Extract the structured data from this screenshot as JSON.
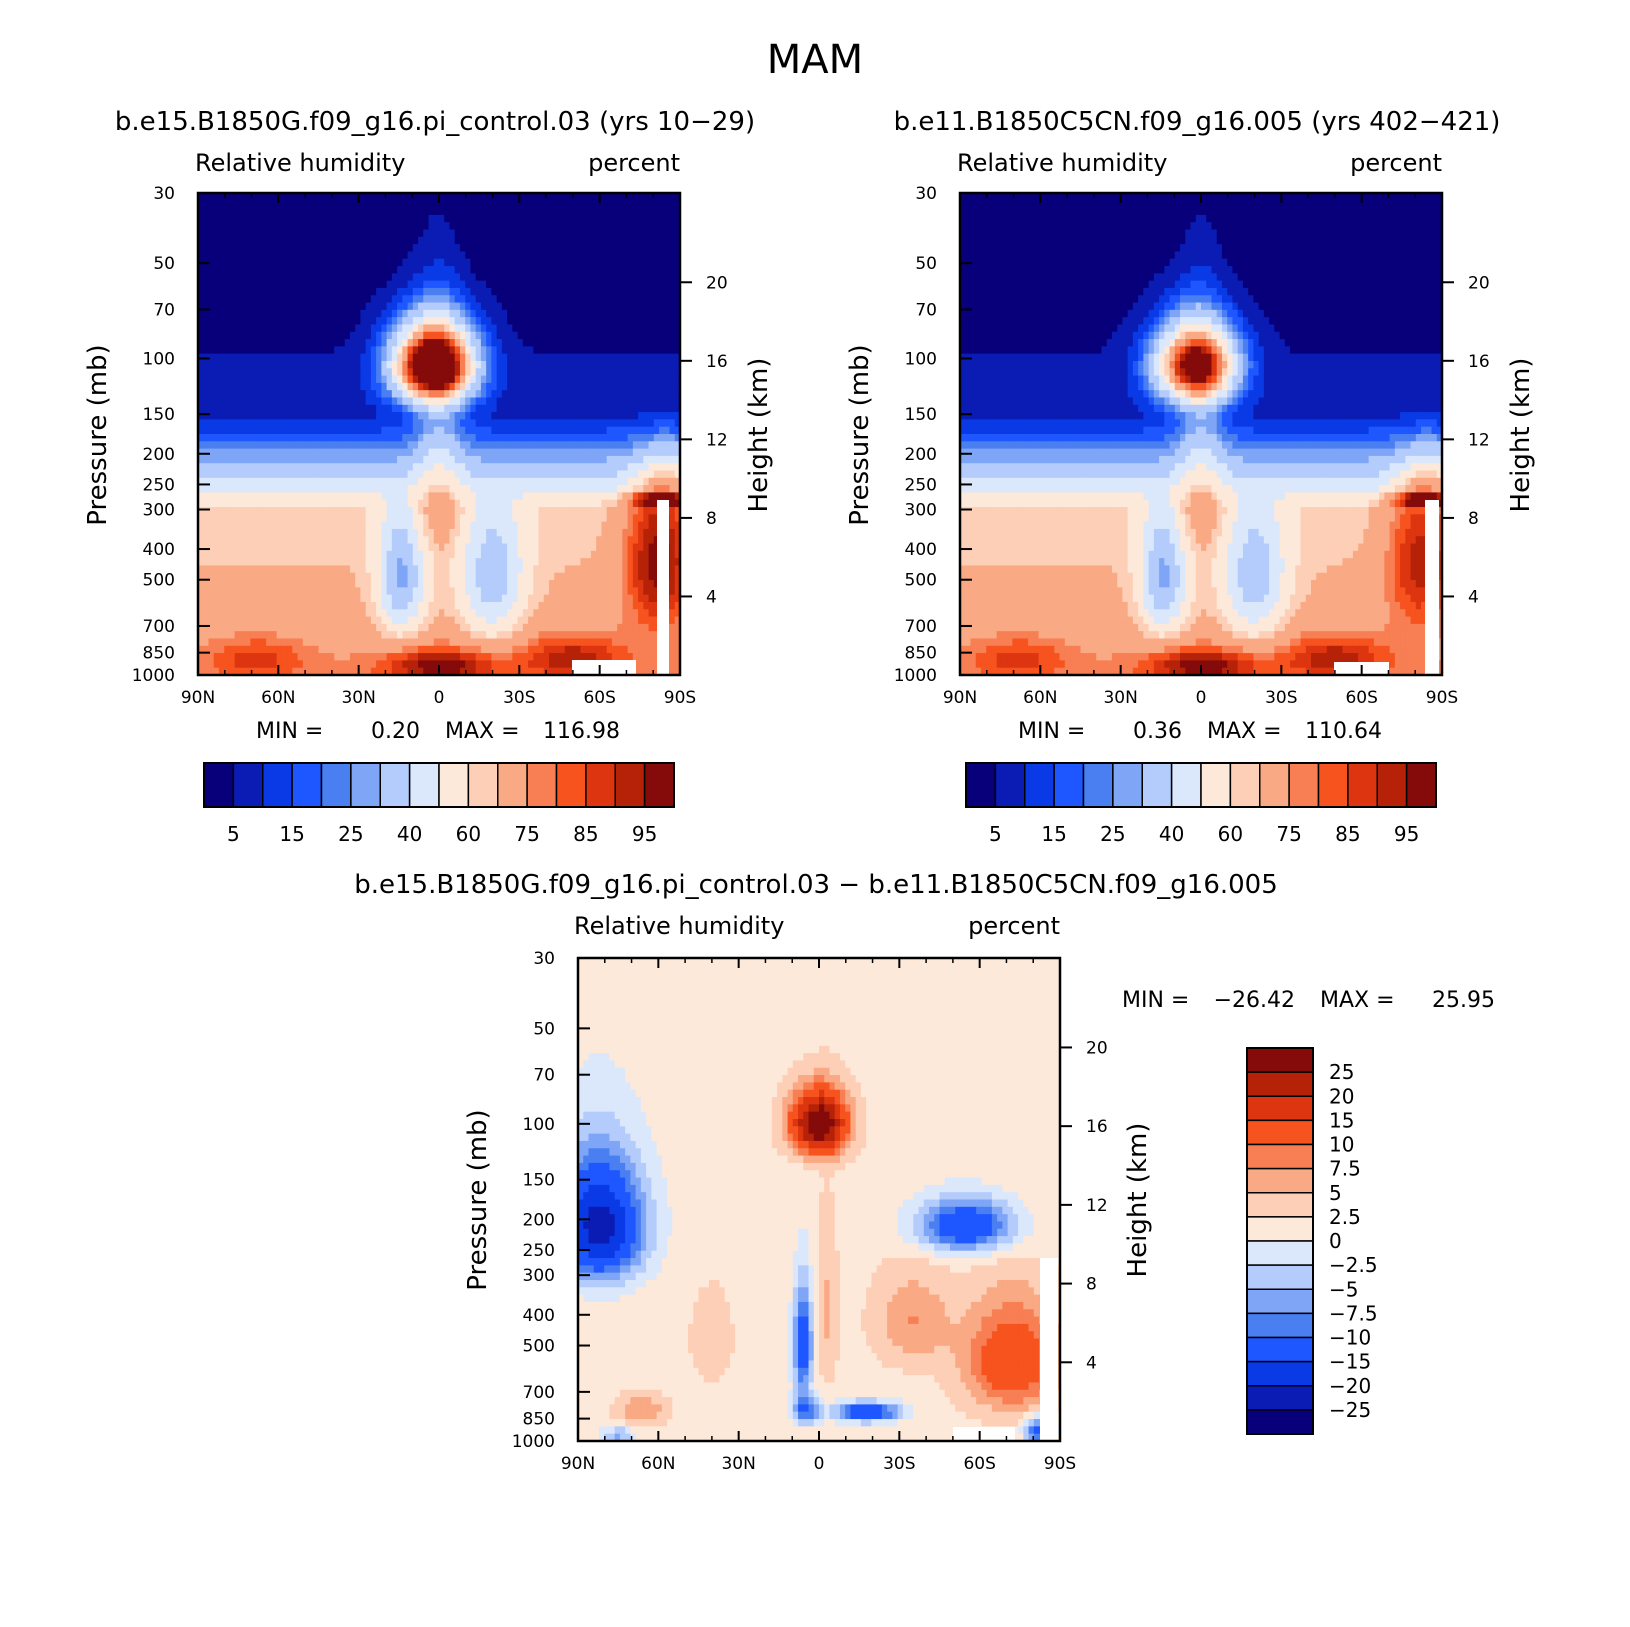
{
  "figure_title": "MAM",
  "colors": {
    "seq16": [
      "#08007a",
      "#0a1cb3",
      "#0a3ae6",
      "#1e57ff",
      "#4a7ff2",
      "#7fa5f7",
      "#b4ccfb",
      "#dbe8fc",
      "#fde9da",
      "#fdcfb6",
      "#f9a984",
      "#f77f53",
      "#f7531f",
      "#dd3510",
      "#b52208",
      "#850b0b"
    ],
    "diff14": [
      "#08007a",
      "#0a1cb3",
      "#0a3ae6",
      "#1e57ff",
      "#4a7ff2",
      "#7fa5f7",
      "#b4ccfb",
      "#dbe8fc",
      "#fde9da",
      "#fdcfb6",
      "#f9a984",
      "#f77f53",
      "#f7531f",
      "#dd3510",
      "#b52208",
      "#850b0b"
    ]
  },
  "chart_data": [
    {
      "type": "contour",
      "title": "b.e15.B1850G.f09_g16.pi_control.03 (yrs 10−29)",
      "variable": "Relative humidity",
      "units": "percent",
      "xlabel": "",
      "ylabel": "Pressure (mb)",
      "y2label": "Height (km)",
      "x_ticks": [
        "90N",
        "60N",
        "30N",
        "0",
        "30S",
        "60S",
        "90S"
      ],
      "y_ticks": [
        30,
        50,
        70,
        100,
        150,
        200,
        250,
        300,
        400,
        500,
        700,
        850,
        1000
      ],
      "y_tick_labels": [
        "30",
        "50",
        "70",
        "100",
        "150",
        "200",
        "250",
        "300",
        "400",
        "500",
        "700",
        "850",
        "1000"
      ],
      "height_ticks": [
        20,
        16,
        12,
        8,
        4
      ],
      "min_label": "MIN =",
      "min_value": "0.20",
      "max_label": "MAX =",
      "max_value": "116.98",
      "levels": [
        5,
        10,
        15,
        20,
        25,
        30,
        40,
        50,
        60,
        65,
        75,
        80,
        85,
        90,
        95
      ],
      "colorbar_labels": [
        "5",
        "15",
        "25",
        "40",
        "60",
        "75",
        "85",
        "95"
      ],
      "min": 0.2,
      "max": 116.98
    },
    {
      "type": "contour",
      "title": "b.e11.B1850C5CN.f09_g16.005 (yrs 402−421)",
      "variable": "Relative humidity",
      "units": "percent",
      "xlabel": "",
      "ylabel": "Pressure (mb)",
      "y2label": "Height (km)",
      "x_ticks": [
        "90N",
        "60N",
        "30N",
        "0",
        "30S",
        "60S",
        "90S"
      ],
      "y_ticks": [
        30,
        50,
        70,
        100,
        150,
        200,
        250,
        300,
        400,
        500,
        700,
        850,
        1000
      ],
      "y_tick_labels": [
        "30",
        "50",
        "70",
        "100",
        "150",
        "200",
        "250",
        "300",
        "400",
        "500",
        "700",
        "850",
        "1000"
      ],
      "height_ticks": [
        20,
        16,
        12,
        8,
        4
      ],
      "min_label": "MIN =",
      "min_value": "0.36",
      "max_label": "MAX =",
      "max_value": "110.64",
      "levels": [
        5,
        10,
        15,
        20,
        25,
        30,
        40,
        50,
        60,
        65,
        75,
        80,
        85,
        90,
        95
      ],
      "colorbar_labels": [
        "5",
        "15",
        "25",
        "40",
        "60",
        "75",
        "85",
        "95"
      ],
      "min": 0.36,
      "max": 110.64
    },
    {
      "type": "contour",
      "title": "b.e15.B1850G.f09_g16.pi_control.03 − b.e11.B1850C5CN.f09_g16.005",
      "variable": "Relative humidity",
      "units": "percent",
      "xlabel": "",
      "ylabel": "Pressure (mb)",
      "y2label": "Height (km)",
      "x_ticks": [
        "90N",
        "60N",
        "30N",
        "0",
        "30S",
        "60S",
        "90S"
      ],
      "y_ticks": [
        30,
        50,
        70,
        100,
        150,
        200,
        250,
        300,
        400,
        500,
        700,
        850,
        1000
      ],
      "y_tick_labels": [
        "30",
        "50",
        "70",
        "100",
        "150",
        "200",
        "250",
        "300",
        "400",
        "500",
        "700",
        "850",
        "1000"
      ],
      "height_ticks": [
        20,
        16,
        12,
        8,
        4
      ],
      "min_label": "MIN =",
      "min_value": "−26.42",
      "max_label": "MAX =",
      "max_value": "25.95",
      "levels": [
        -25,
        -20,
        -15,
        -10,
        -7.5,
        -5,
        -2.5,
        0,
        2.5,
        5,
        7.5,
        10,
        15,
        20,
        25
      ],
      "colorbar_labels": [
        "25",
        "20",
        "15",
        "10",
        "7.5",
        "5",
        "2.5",
        "0",
        "−2.5",
        "−5",
        "−7.5",
        "−10",
        "−15",
        "−20",
        "−25"
      ],
      "min": -26.42,
      "max": 25.95
    }
  ]
}
